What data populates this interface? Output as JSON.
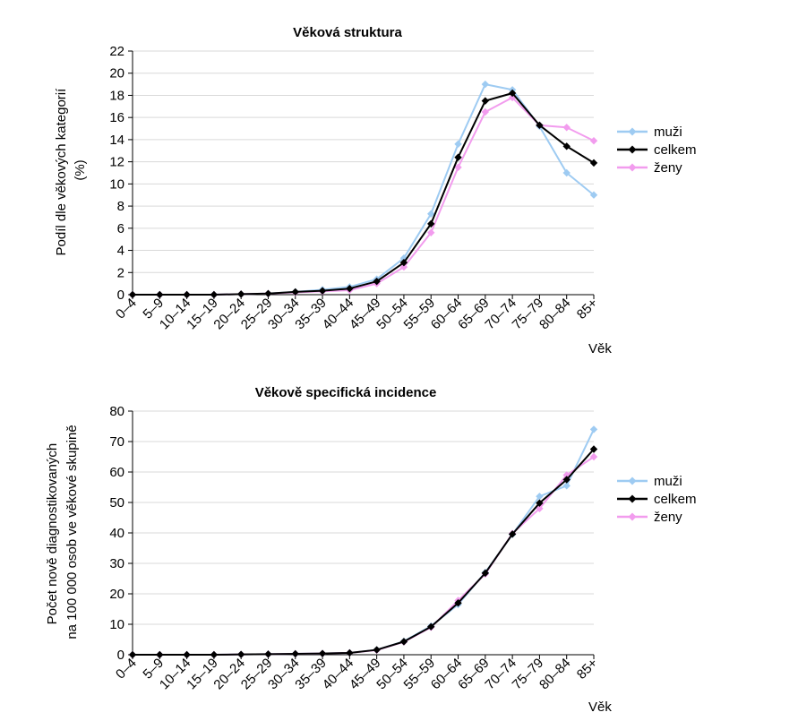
{
  "colors": {
    "muzi": "#9ecbf2",
    "celkem": "#000000",
    "zeny": "#f29cee",
    "grid": "#d9d9d9",
    "axis": "#000000"
  },
  "chart_data": [
    {
      "type": "line",
      "title": "Věková struktura",
      "ylabel_lines": [
        "Podíl dle věkových kategorií",
        "(%)"
      ],
      "xlabel": "Věk",
      "categories": [
        "0–4",
        "5–9",
        "10–14",
        "15–19",
        "20–24",
        "25–29",
        "30–34",
        "35–39",
        "40–44",
        "45–49",
        "50–54",
        "55–59",
        "60–64",
        "65–69",
        "70–74",
        "75–79",
        "80–84",
        "85+"
      ],
      "ylim": [
        0,
        22
      ],
      "yticks": [
        0,
        2,
        4,
        6,
        8,
        10,
        12,
        14,
        16,
        18,
        20,
        22
      ],
      "grid": true,
      "legend_position": "right",
      "series": [
        {
          "key": "muzi",
          "name": "muži",
          "marker": "diamond",
          "values": [
            0,
            0,
            0,
            0,
            0.05,
            0.1,
            0.25,
            0.45,
            0.7,
            1.4,
            3.3,
            7.3,
            13.6,
            19.0,
            18.5,
            15.2,
            11.0,
            9.0
          ]
        },
        {
          "key": "celkem",
          "name": "celkem",
          "marker": "diamond",
          "values": [
            0,
            0,
            0,
            0,
            0.05,
            0.1,
            0.25,
            0.35,
            0.55,
            1.2,
            2.9,
            6.4,
            12.4,
            17.5,
            18.2,
            15.3,
            13.4,
            11.9
          ]
        },
        {
          "key": "zeny",
          "name": "ženy",
          "marker": "diamond",
          "values": [
            0,
            0,
            0,
            0,
            0.05,
            0.1,
            0.2,
            0.3,
            0.4,
            1.0,
            2.5,
            5.6,
            11.5,
            16.5,
            17.8,
            15.3,
            15.1,
            13.9
          ]
        }
      ]
    },
    {
      "type": "line",
      "title": "Věkově specifická incidence",
      "ylabel_lines": [
        "Počet nově diagnostikovaných",
        "na 100 000 osob ve věkové skupině"
      ],
      "xlabel": "Věk",
      "categories": [
        "0–4",
        "5–9",
        "10–14",
        "15–19",
        "20–24",
        "25–29",
        "30–34",
        "35–39",
        "40–44",
        "45–49",
        "50–54",
        "55–59",
        "60–64",
        "65–69",
        "70–74",
        "75–79",
        "80–84",
        "85+"
      ],
      "ylim": [
        0,
        80
      ],
      "yticks": [
        0,
        10,
        20,
        30,
        40,
        50,
        60,
        70,
        80
      ],
      "grid": true,
      "legend_position": "right",
      "series": [
        {
          "key": "muzi",
          "name": "muži",
          "marker": "diamond",
          "values": [
            0,
            0,
            0,
            0,
            0.1,
            0.2,
            0.3,
            0.4,
            0.6,
            1.6,
            4.4,
            9.4,
            16.5,
            27.0,
            39.5,
            52.0,
            55.5,
            74.0
          ]
        },
        {
          "key": "celkem",
          "name": "celkem",
          "marker": "diamond",
          "values": [
            0,
            0,
            0,
            0,
            0.1,
            0.2,
            0.3,
            0.4,
            0.6,
            1.6,
            4.3,
            9.2,
            17.0,
            26.8,
            39.6,
            49.8,
            57.5,
            67.5
          ]
        },
        {
          "key": "zeny",
          "name": "ženy",
          "marker": "diamond",
          "values": [
            0,
            0,
            0,
            0,
            0.1,
            0.2,
            0.3,
            0.4,
            0.6,
            1.5,
            4.2,
            9.0,
            17.8,
            26.5,
            39.8,
            48.0,
            59.0,
            65.0
          ]
        }
      ]
    }
  ]
}
